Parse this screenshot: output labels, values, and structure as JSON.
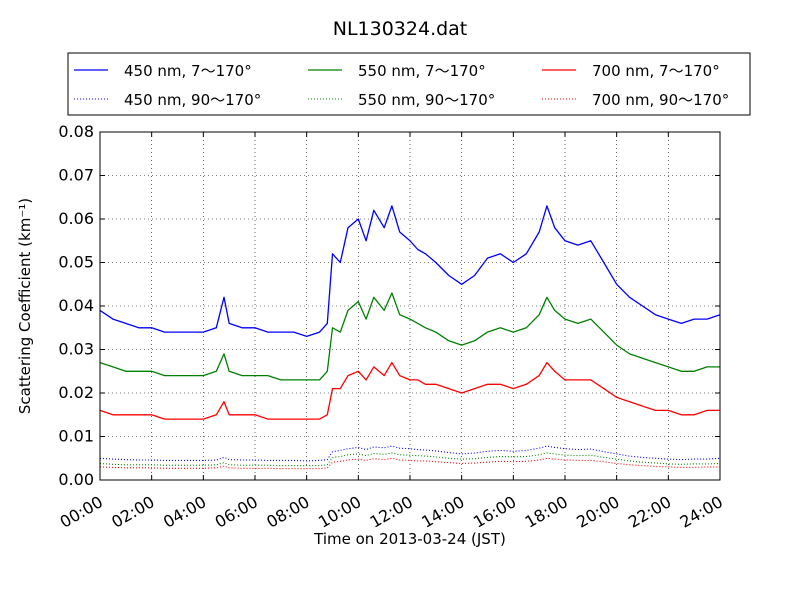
{
  "chart_data": {
    "type": "line",
    "title": "NL130324.dat",
    "xlabel": "Time on 2013-03-24 (JST)",
    "ylabel": "Scattering Coefficient (km⁻¹)",
    "x_range": [
      "00:00",
      "24:00"
    ],
    "ylim": [
      0,
      0.08
    ],
    "x_ticks": [
      "00:00",
      "02:00",
      "04:00",
      "06:00",
      "08:00",
      "10:00",
      "12:00",
      "14:00",
      "16:00",
      "18:00",
      "20:00",
      "22:00",
      "24:00"
    ],
    "y_ticks": [
      "0.00",
      "0.01",
      "0.02",
      "0.03",
      "0.04",
      "0.05",
      "0.06",
      "0.07",
      "0.08"
    ],
    "grid": true,
    "legend_position": "top",
    "x_hours": [
      0,
      0.5,
      1,
      1.5,
      2,
      2.5,
      3,
      3.5,
      4,
      4.5,
      4.8,
      5,
      5.5,
      6,
      6.5,
      7,
      7.5,
      8,
      8.5,
      8.8,
      9,
      9.3,
      9.6,
      10,
      10.3,
      10.6,
      11,
      11.3,
      11.6,
      12,
      12.3,
      12.6,
      13,
      13.5,
      14,
      14.5,
      15,
      15.5,
      16,
      16.5,
      17,
      17.3,
      17.6,
      18,
      18.5,
      19,
      19.5,
      20,
      20.5,
      21,
      21.5,
      22,
      22.5,
      23,
      23.5,
      24
    ],
    "series": [
      {
        "name": "450 nm, 7～170°",
        "color": "#0000ff",
        "style": "solid",
        "values": [
          0.039,
          0.037,
          0.036,
          0.035,
          0.035,
          0.034,
          0.034,
          0.034,
          0.034,
          0.035,
          0.042,
          0.036,
          0.035,
          0.035,
          0.034,
          0.034,
          0.034,
          0.033,
          0.034,
          0.036,
          0.052,
          0.05,
          0.058,
          0.06,
          0.055,
          0.062,
          0.058,
          0.063,
          0.057,
          0.055,
          0.053,
          0.052,
          0.05,
          0.047,
          0.045,
          0.047,
          0.051,
          0.052,
          0.05,
          0.052,
          0.057,
          0.063,
          0.058,
          0.055,
          0.054,
          0.055,
          0.05,
          0.045,
          0.042,
          0.04,
          0.038,
          0.037,
          0.036,
          0.037,
          0.037,
          0.038
        ]
      },
      {
        "name": "450 nm, 90～170°",
        "color": "#0000ff",
        "style": "dotted",
        "values": [
          0.005,
          0.0048,
          0.0047,
          0.0046,
          0.0046,
          0.0045,
          0.0045,
          0.0045,
          0.0045,
          0.0046,
          0.0052,
          0.0047,
          0.0046,
          0.0046,
          0.0045,
          0.0045,
          0.0045,
          0.0044,
          0.0045,
          0.0047,
          0.0065,
          0.0068,
          0.0072,
          0.0075,
          0.007,
          0.0076,
          0.0074,
          0.0078,
          0.0073,
          0.0072,
          0.007,
          0.0069,
          0.0067,
          0.0063,
          0.006,
          0.0062,
          0.0066,
          0.0068,
          0.0066,
          0.0068,
          0.0073,
          0.0078,
          0.0075,
          0.0072,
          0.007,
          0.0071,
          0.0065,
          0.006,
          0.0055,
          0.0052,
          0.005,
          0.0048,
          0.0047,
          0.0048,
          0.0048,
          0.005
        ]
      },
      {
        "name": "550 nm, 7～170°",
        "color": "#008000",
        "style": "solid",
        "values": [
          0.027,
          0.026,
          0.025,
          0.025,
          0.025,
          0.024,
          0.024,
          0.024,
          0.024,
          0.025,
          0.029,
          0.025,
          0.024,
          0.024,
          0.024,
          0.023,
          0.023,
          0.023,
          0.023,
          0.025,
          0.035,
          0.034,
          0.039,
          0.041,
          0.037,
          0.042,
          0.039,
          0.043,
          0.038,
          0.037,
          0.036,
          0.035,
          0.034,
          0.032,
          0.031,
          0.032,
          0.034,
          0.035,
          0.034,
          0.035,
          0.038,
          0.042,
          0.039,
          0.037,
          0.036,
          0.037,
          0.034,
          0.031,
          0.029,
          0.028,
          0.027,
          0.026,
          0.025,
          0.025,
          0.026,
          0.026
        ]
      },
      {
        "name": "550 nm, 90～170°",
        "color": "#008000",
        "style": "dotted",
        "values": [
          0.0038,
          0.0036,
          0.0035,
          0.0035,
          0.0035,
          0.0034,
          0.0034,
          0.0034,
          0.0034,
          0.0035,
          0.004,
          0.0035,
          0.0034,
          0.0034,
          0.0034,
          0.0033,
          0.0033,
          0.0033,
          0.0033,
          0.0035,
          0.0052,
          0.0054,
          0.0058,
          0.006,
          0.0056,
          0.0061,
          0.0059,
          0.0062,
          0.0058,
          0.0057,
          0.0056,
          0.0055,
          0.0053,
          0.005,
          0.0048,
          0.0049,
          0.0052,
          0.0054,
          0.0053,
          0.0054,
          0.0058,
          0.0062,
          0.006,
          0.0057,
          0.0056,
          0.0057,
          0.0052,
          0.0048,
          0.0044,
          0.0041,
          0.0039,
          0.0037,
          0.0036,
          0.0037,
          0.0037,
          0.0038
        ]
      },
      {
        "name": "700 nm, 7～170°",
        "color": "#ff0000",
        "style": "solid",
        "values": [
          0.016,
          0.015,
          0.015,
          0.015,
          0.015,
          0.014,
          0.014,
          0.014,
          0.014,
          0.015,
          0.018,
          0.015,
          0.015,
          0.015,
          0.014,
          0.014,
          0.014,
          0.014,
          0.014,
          0.015,
          0.021,
          0.021,
          0.024,
          0.025,
          0.023,
          0.026,
          0.024,
          0.027,
          0.024,
          0.023,
          0.023,
          0.022,
          0.022,
          0.021,
          0.02,
          0.021,
          0.022,
          0.022,
          0.021,
          0.022,
          0.024,
          0.027,
          0.025,
          0.023,
          0.023,
          0.023,
          0.021,
          0.019,
          0.018,
          0.017,
          0.016,
          0.016,
          0.015,
          0.015,
          0.016,
          0.016
        ]
      },
      {
        "name": "700 nm, 90～170°",
        "color": "#ff0000",
        "style": "dotted",
        "values": [
          0.003,
          0.0029,
          0.0028,
          0.0028,
          0.0028,
          0.0027,
          0.0027,
          0.0027,
          0.0027,
          0.0028,
          0.0032,
          0.0028,
          0.0027,
          0.0027,
          0.0027,
          0.0026,
          0.0026,
          0.0026,
          0.0026,
          0.0028,
          0.0041,
          0.0043,
          0.0046,
          0.0048,
          0.0045,
          0.0049,
          0.0047,
          0.005,
          0.0046,
          0.0045,
          0.0044,
          0.0044,
          0.0042,
          0.004,
          0.0038,
          0.0039,
          0.0041,
          0.0043,
          0.0042,
          0.0043,
          0.0046,
          0.005,
          0.0048,
          0.0046,
          0.0045,
          0.0045,
          0.0042,
          0.0038,
          0.0035,
          0.0033,
          0.0031,
          0.003,
          0.0029,
          0.0029,
          0.003,
          0.003
        ]
      }
    ]
  }
}
